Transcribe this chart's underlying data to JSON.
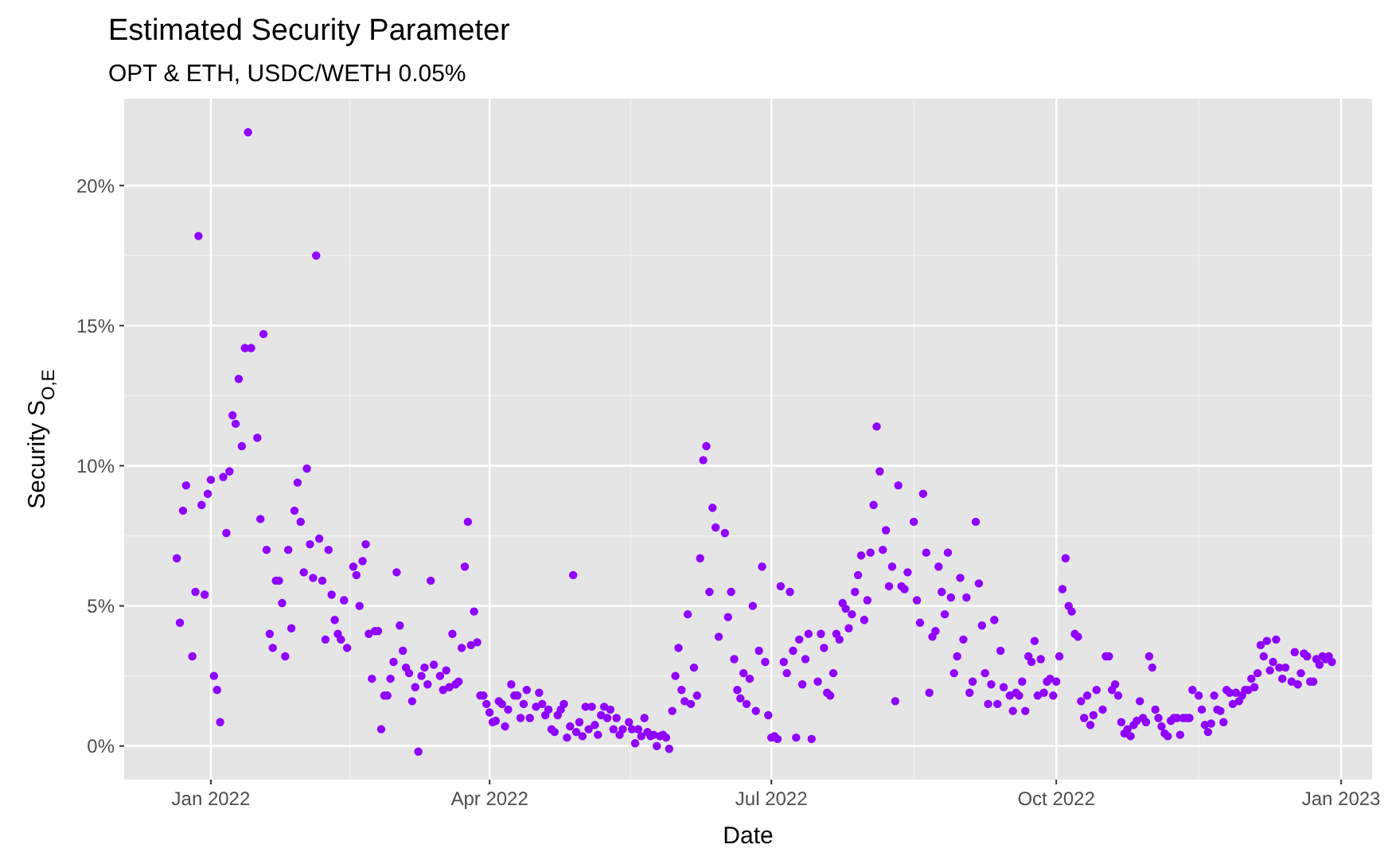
{
  "chart_data": {
    "type": "scatter",
    "title": "Estimated Security Parameter",
    "subtitle": "OPT & ETH, USDC/WETH 0.05%",
    "xlabel": "Date",
    "ylabel": "Security S$_{O,E}$",
    "xlim": [
      "2021-12-04",
      "2023-01-11"
    ],
    "ylim": [
      -1.2,
      23.1
    ],
    "xticks": [
      {
        "value": "2022-01-01",
        "label": "Jan 2022"
      },
      {
        "value": "2022-04-01",
        "label": "Apr 2022"
      },
      {
        "value": "2022-07-01",
        "label": "Jul 2022"
      },
      {
        "value": "2022-10-01",
        "label": "Oct 2022"
      },
      {
        "value": "2023-01-01",
        "label": "Jan 2023"
      }
    ],
    "yticks": [
      {
        "value": 0,
        "label": "0%"
      },
      {
        "value": 5,
        "label": "5%"
      },
      {
        "value": 10,
        "label": "10%"
      },
      {
        "value": 15,
        "label": "15%"
      },
      {
        "value": 20,
        "label": "20%"
      }
    ],
    "grid": true,
    "marker": "circle",
    "x": [
      "2021-12-21",
      "2021-12-22",
      "2021-12-23",
      "2021-12-24",
      "2021-12-26",
      "2021-12-27",
      "2021-12-28",
      "2021-12-29",
      "2021-12-30",
      "2021-12-31",
      "2022-01-01",
      "2022-01-02",
      "2022-01-03",
      "2022-01-04",
      "2022-01-05",
      "2022-01-06",
      "2022-01-07",
      "2022-01-08",
      "2022-01-09",
      "2022-01-10",
      "2022-01-11",
      "2022-01-12",
      "2022-01-13",
      "2022-01-14",
      "2022-01-16",
      "2022-01-17",
      "2022-01-18",
      "2022-01-19",
      "2022-01-20",
      "2022-01-21",
      "2022-01-22",
      "2022-01-23",
      "2022-01-24",
      "2022-01-25",
      "2022-01-26",
      "2022-01-27",
      "2022-01-28",
      "2022-01-29",
      "2022-01-30",
      "2022-01-31",
      "2022-02-01",
      "2022-02-02",
      "2022-02-03",
      "2022-02-04",
      "2022-02-05",
      "2022-02-06",
      "2022-02-07",
      "2022-02-08",
      "2022-02-09",
      "2022-02-10",
      "2022-02-11",
      "2022-02-12",
      "2022-02-13",
      "2022-02-14",
      "2022-02-16",
      "2022-02-17",
      "2022-02-18",
      "2022-02-19",
      "2022-02-20",
      "2022-02-21",
      "2022-02-22",
      "2022-02-23",
      "2022-02-24",
      "2022-02-25",
      "2022-02-26",
      "2022-02-27",
      "2022-02-28",
      "2022-03-01",
      "2022-03-02",
      "2022-03-03",
      "2022-03-04",
      "2022-03-05",
      "2022-03-06",
      "2022-03-07",
      "2022-03-08",
      "2022-03-09",
      "2022-03-10",
      "2022-03-11",
      "2022-03-12",
      "2022-03-13",
      "2022-03-14",
      "2022-03-16",
      "2022-03-17",
      "2022-03-18",
      "2022-03-19",
      "2022-03-20",
      "2022-03-21",
      "2022-03-22",
      "2022-03-23",
      "2022-03-24",
      "2022-03-25",
      "2022-03-26",
      "2022-03-27",
      "2022-03-28",
      "2022-03-29",
      "2022-03-30",
      "2022-03-31",
      "2022-04-01",
      "2022-04-02",
      "2022-04-03",
      "2022-04-04",
      "2022-04-05",
      "2022-04-06",
      "2022-04-07",
      "2022-04-08",
      "2022-04-09",
      "2022-04-10",
      "2022-04-11",
      "2022-04-12",
      "2022-04-13",
      "2022-04-14",
      "2022-04-16",
      "2022-04-17",
      "2022-04-18",
      "2022-04-19",
      "2022-04-20",
      "2022-04-21",
      "2022-04-22",
      "2022-04-23",
      "2022-04-24",
      "2022-04-25",
      "2022-04-26",
      "2022-04-27",
      "2022-04-28",
      "2022-04-29",
      "2022-04-30",
      "2022-05-01",
      "2022-05-02",
      "2022-05-03",
      "2022-05-04",
      "2022-05-05",
      "2022-05-06",
      "2022-05-07",
      "2022-05-08",
      "2022-05-09",
      "2022-05-10",
      "2022-05-11",
      "2022-05-12",
      "2022-05-13",
      "2022-05-14",
      "2022-05-16",
      "2022-05-17",
      "2022-05-18",
      "2022-05-19",
      "2022-05-20",
      "2022-05-21",
      "2022-05-22",
      "2022-05-23",
      "2022-05-24",
      "2022-05-25",
      "2022-05-26",
      "2022-05-27",
      "2022-05-28",
      "2022-05-29",
      "2022-05-30",
      "2022-05-31",
      "2022-06-01",
      "2022-06-02",
      "2022-06-03",
      "2022-06-04",
      "2022-06-05",
      "2022-06-06",
      "2022-06-07",
      "2022-06-08",
      "2022-06-09",
      "2022-06-10",
      "2022-06-11",
      "2022-06-12",
      "2022-06-13",
      "2022-06-14",
      "2022-06-16",
      "2022-06-17",
      "2022-06-18",
      "2022-06-19",
      "2022-06-20",
      "2022-06-21",
      "2022-06-22",
      "2022-06-23",
      "2022-06-24",
      "2022-06-25",
      "2022-06-26",
      "2022-06-27",
      "2022-06-28",
      "2022-06-29",
      "2022-06-30",
      "2022-07-01",
      "2022-07-02",
      "2022-07-03",
      "2022-07-04",
      "2022-07-05",
      "2022-07-06",
      "2022-07-07",
      "2022-07-08",
      "2022-07-09",
      "2022-07-10",
      "2022-07-11",
      "2022-07-12",
      "2022-07-13",
      "2022-07-14",
      "2022-07-16",
      "2022-07-17",
      "2022-07-18",
      "2022-07-19",
      "2022-07-20",
      "2022-07-21",
      "2022-07-22",
      "2022-07-23",
      "2022-07-24",
      "2022-07-25",
      "2022-07-26",
      "2022-07-27",
      "2022-07-28",
      "2022-07-29",
      "2022-07-30",
      "2022-07-31",
      "2022-08-01",
      "2022-08-02",
      "2022-08-03",
      "2022-08-04",
      "2022-08-05",
      "2022-08-06",
      "2022-08-07",
      "2022-08-08",
      "2022-08-09",
      "2022-08-10",
      "2022-08-11",
      "2022-08-12",
      "2022-08-13",
      "2022-08-14",
      "2022-08-16",
      "2022-08-17",
      "2022-08-18",
      "2022-08-19",
      "2022-08-20",
      "2022-08-21",
      "2022-08-22",
      "2022-08-23",
      "2022-08-24",
      "2022-08-25",
      "2022-08-26",
      "2022-08-27",
      "2022-08-28",
      "2022-08-29",
      "2022-08-30",
      "2022-08-31",
      "2022-09-01",
      "2022-09-02",
      "2022-09-03",
      "2022-09-04",
      "2022-09-05",
      "2022-09-06",
      "2022-09-07",
      "2022-09-08",
      "2022-09-09",
      "2022-09-10",
      "2022-09-11",
      "2022-09-12",
      "2022-09-13",
      "2022-09-14",
      "2022-09-16",
      "2022-09-17",
      "2022-09-18",
      "2022-09-19",
      "2022-09-20",
      "2022-09-21",
      "2022-09-22",
      "2022-09-23",
      "2022-09-24",
      "2022-09-25",
      "2022-09-26",
      "2022-09-27",
      "2022-09-28",
      "2022-09-29",
      "2022-09-30",
      "2022-10-01",
      "2022-10-02",
      "2022-10-03",
      "2022-10-04",
      "2022-10-05",
      "2022-10-06",
      "2022-10-07",
      "2022-10-08",
      "2022-10-09",
      "2022-10-10",
      "2022-10-11",
      "2022-10-12",
      "2022-10-13",
      "2022-10-14",
      "2022-10-16",
      "2022-10-17",
      "2022-10-18",
      "2022-10-19",
      "2022-10-20",
      "2022-10-21",
      "2022-10-22",
      "2022-10-23",
      "2022-10-24",
      "2022-10-25",
      "2022-10-26",
      "2022-10-27",
      "2022-10-28",
      "2022-10-29",
      "2022-10-30",
      "2022-10-31",
      "2022-11-01",
      "2022-11-02",
      "2022-11-03",
      "2022-11-04",
      "2022-11-05",
      "2022-11-06",
      "2022-11-07",
      "2022-11-08",
      "2022-11-09",
      "2022-11-10",
      "2022-11-11",
      "2022-11-12",
      "2022-11-13",
      "2022-11-14",
      "2022-11-16",
      "2022-11-17",
      "2022-11-18",
      "2022-11-19",
      "2022-11-20",
      "2022-11-21",
      "2022-11-22",
      "2022-11-23",
      "2022-11-24",
      "2022-11-25",
      "2022-11-26",
      "2022-11-27",
      "2022-11-28",
      "2022-11-29",
      "2022-11-30",
      "2022-12-01",
      "2022-12-02",
      "2022-12-03",
      "2022-12-04",
      "2022-12-05",
      "2022-12-06",
      "2022-12-07",
      "2022-12-08",
      "2022-12-09",
      "2022-12-10",
      "2022-12-11",
      "2022-12-12",
      "2022-12-13",
      "2022-12-14",
      "2022-12-16",
      "2022-12-17",
      "2022-12-18",
      "2022-12-19",
      "2022-12-20",
      "2022-12-21",
      "2022-12-22",
      "2022-12-23",
      "2022-12-24",
      "2022-12-25",
      "2022-12-26",
      "2022-12-27",
      "2022-12-28",
      "2022-12-29"
    ],
    "series": [
      {
        "color": "#8f00ff",
        "values": [
          6.7,
          4.4,
          8.4,
          9.3,
          3.2,
          5.5,
          18.2,
          8.6,
          5.4,
          9.0,
          9.5,
          2.5,
          2.0,
          0.85,
          9.6,
          7.6,
          9.8,
          11.8,
          11.5,
          13.1,
          10.7,
          14.2,
          21.9,
          14.2,
          11.0,
          8.1,
          14.7,
          7.0,
          4.0,
          3.5,
          5.9,
          5.9,
          5.1,
          3.2,
          7.0,
          4.2,
          8.4,
          9.4,
          8.0,
          6.2,
          9.9,
          7.2,
          6.0,
          17.5,
          7.4,
          5.9,
          3.8,
          7.0,
          5.4,
          4.5,
          4.0,
          3.8,
          5.2,
          3.5,
          6.4,
          6.1,
          5.0,
          6.6,
          7.2,
          4.0,
          2.4,
          4.1,
          4.1,
          0.6,
          1.8,
          1.8,
          2.4,
          3.0,
          6.2,
          4.3,
          3.4,
          2.8,
          2.6,
          1.6,
          2.1,
          -0.2,
          2.5,
          2.8,
          2.2,
          5.9,
          2.9,
          2.5,
          2.0,
          2.7,
          2.1,
          4.0,
          2.2,
          2.3,
          3.5,
          6.4,
          8.0,
          3.6,
          4.8,
          3.7,
          1.8,
          1.8,
          1.5,
          1.2,
          0.85,
          0.9,
          1.6,
          1.5,
          0.7,
          1.3,
          2.2,
          1.8,
          1.8,
          1.0,
          1.5,
          2.0,
          1.0,
          1.4,
          1.9,
          1.5,
          1.1,
          1.3,
          0.6,
          0.5,
          1.1,
          1.3,
          1.5,
          0.3,
          0.7,
          6.1,
          0.5,
          0.85,
          0.35,
          1.4,
          0.6,
          1.4,
          0.75,
          0.4,
          1.1,
          1.4,
          1.0,
          1.3,
          0.6,
          1.0,
          0.4,
          0.6,
          0.85,
          0.6,
          0.1,
          0.6,
          0.35,
          1.0,
          0.5,
          0.35,
          0.4,
          0.0,
          0.35,
          0.4,
          0.3,
          -0.1,
          1.25,
          2.5,
          3.5,
          2.0,
          1.6,
          4.7,
          1.5,
          2.8,
          1.8,
          6.7,
          10.2,
          10.7,
          5.5,
          8.5,
          7.8,
          3.9,
          7.6,
          4.6,
          5.5,
          3.1,
          2.0,
          1.7,
          2.6,
          1.5,
          2.4,
          5.0,
          1.25,
          3.4,
          6.4,
          3.0,
          1.1,
          0.3,
          0.35,
          0.25,
          5.7,
          3.0,
          2.6,
          5.5,
          3.4,
          0.3,
          3.8,
          2.2,
          3.1,
          4.0,
          0.25,
          2.3,
          4.0,
          3.5,
          1.9,
          1.8,
          2.6,
          4.0,
          3.8,
          5.1,
          4.9,
          4.2,
          4.7,
          5.5,
          6.1,
          6.8,
          4.5,
          5.2,
          6.9,
          8.6,
          11.4,
          9.8,
          7.0,
          7.7,
          5.7,
          6.4,
          1.6,
          9.3,
          5.7,
          5.6,
          6.2,
          8.0,
          5.2,
          4.4,
          9.0,
          6.9,
          1.9,
          3.9,
          4.1,
          6.4,
          5.5,
          4.7,
          6.9,
          5.3,
          2.6,
          3.2,
          6.0,
          3.8,
          5.3,
          1.9,
          2.3,
          8.0,
          5.8,
          4.3,
          2.6,
          1.5,
          2.2,
          4.5,
          1.5,
          3.4,
          2.1,
          1.8,
          1.25,
          1.9,
          1.8,
          2.3,
          1.25,
          3.2,
          3.0,
          3.75,
          1.8,
          3.1,
          1.9,
          2.3,
          2.4,
          1.8,
          2.3,
          3.2,
          5.6,
          6.7,
          5.0,
          4.8,
          4.0,
          3.9,
          1.6,
          1.0,
          1.8,
          0.75,
          1.1,
          2.0,
          1.3,
          3.2,
          3.2,
          2.0,
          2.2,
          1.8,
          0.85,
          0.45,
          0.6,
          0.35,
          0.75,
          0.9,
          1.6,
          1.0,
          0.85,
          3.2,
          2.8,
          1.3,
          1.0,
          0.7,
          0.45,
          0.35,
          0.9,
          1.0,
          1.0,
          0.4,
          1.0,
          1.0,
          1.0,
          2.0,
          1.8,
          1.3,
          0.75,
          0.5,
          0.8,
          1.8,
          1.3,
          1.25,
          0.85,
          2.0,
          1.9,
          1.5,
          1.9,
          1.6,
          1.8,
          2.0,
          2.0,
          2.4,
          2.1,
          2.6,
          3.6,
          3.2,
          3.75,
          2.7,
          3.0,
          3.8,
          2.8,
          2.4,
          2.8,
          2.3,
          3.35,
          2.2,
          2.6,
          3.3,
          3.2,
          2.3,
          2.3,
          3.1,
          2.9,
          3.2,
          3.1,
          3.2,
          3.0
        ]
      }
    ]
  }
}
